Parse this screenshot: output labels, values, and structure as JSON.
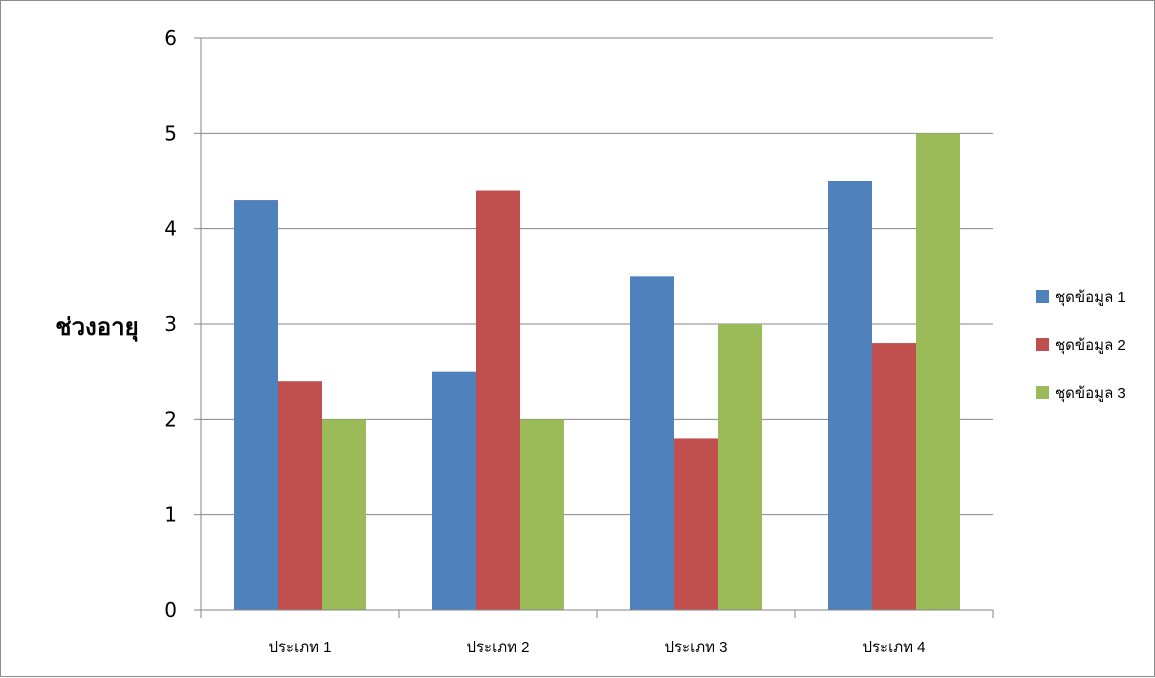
{
  "chart_data": {
    "type": "bar",
    "title": "",
    "xlabel": "",
    "ylabel": "ช่วงอายุ",
    "categories": [
      "ประเภท 1",
      "ประเภท 2",
      "ประเภท 3",
      "ประเภท 4"
    ],
    "series": [
      {
        "name": "ชุดข้อมูล 1",
        "color": "#4f81bd",
        "values": [
          4.3,
          2.5,
          3.5,
          4.5
        ]
      },
      {
        "name": "ชุดข้อมูล 2",
        "color": "#c0504d",
        "values": [
          2.4,
          4.4,
          1.8,
          2.8
        ]
      },
      {
        "name": "ชุดข้อมูล 3",
        "color": "#9bbb59",
        "values": [
          2,
          2,
          3,
          5
        ]
      }
    ],
    "ylim": [
      0,
      6
    ],
    "yticks": [
      "0",
      "1",
      "2",
      "3",
      "4",
      "5",
      "6"
    ],
    "grid": true,
    "legend_position": "right"
  }
}
